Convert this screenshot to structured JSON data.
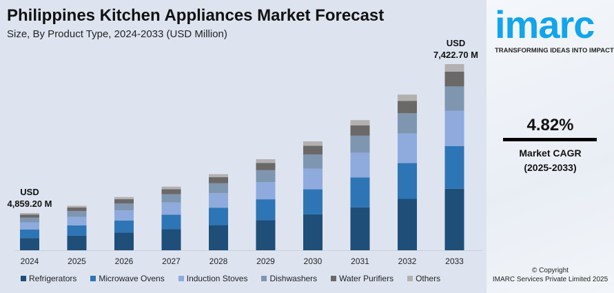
{
  "title": "Philippines Kitchen Appliances Market Forecast",
  "subtitle": "Size, By Product Type, 2024-2033 (USD Million)",
  "annotations": {
    "start": {
      "line1": "USD",
      "line2": "4,859.20 M"
    },
    "end": {
      "line1": "USD",
      "line2": "7,422.70 M"
    }
  },
  "panel": {
    "logo": "imarc",
    "tagline": "TRANSFORMING IDEAS INTO IMPACT",
    "cagr": "4.82%",
    "cagr_label": "Market CAGR",
    "cagr_period": "(2025-2033)",
    "copyright": "© Copyright",
    "company": "IMARC Services Private Limited 2025"
  },
  "chart_data": {
    "type": "bar",
    "stacked": true,
    "categories": [
      "2024",
      "2025",
      "2026",
      "2027",
      "2028",
      "2029",
      "2030",
      "2031",
      "2032",
      "2033"
    ],
    "totals": [
      4859.2,
      5093.4,
      5338.9,
      5596.2,
      5866.0,
      6148.7,
      6445.1,
      6755.7,
      7081.4,
      7422.7
    ],
    "series": [
      {
        "name": "Refrigerators",
        "share": 0.33,
        "color": "#1f4e79"
      },
      {
        "name": "Microwave Ovens",
        "share": 0.23,
        "color": "#2e75b6"
      },
      {
        "name": "Induction Stoves",
        "share": 0.19,
        "color": "#8faadc"
      },
      {
        "name": "Dishwashers",
        "share": 0.13,
        "color": "#7f96b0"
      },
      {
        "name": "Water Purifiers",
        "share": 0.08,
        "color": "#6b6868"
      },
      {
        "name": "Others",
        "share": 0.04,
        "color": "#b3b0b0"
      }
    ],
    "legend": "bottom",
    "grid": false
  }
}
